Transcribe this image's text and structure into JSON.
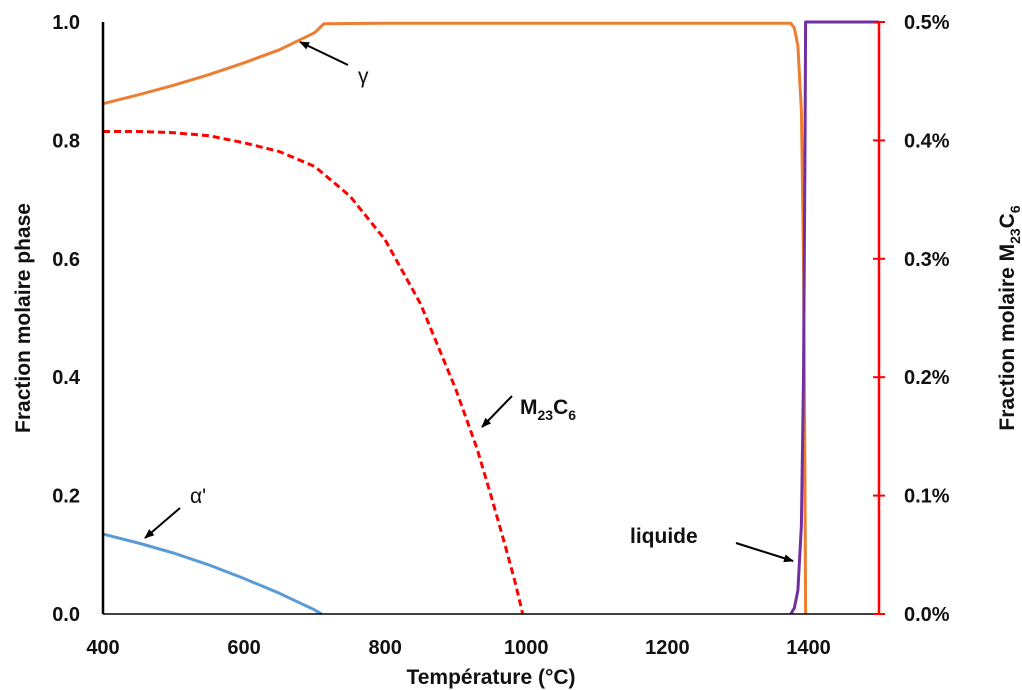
{
  "chart_data": {
    "type": "line",
    "title": "",
    "xlabel": "Température (°C)",
    "ylabel": "Fraction molaire phase",
    "y2label": {
      "base": "Fraction molaire M",
      "sub1": "23",
      "mid": "C",
      "sub2": "6"
    },
    "xlim": [
      400,
      1500
    ],
    "ylim": [
      0,
      1.0
    ],
    "y2lim": [
      0,
      0.5
    ],
    "x_ticks": [
      400,
      600,
      800,
      1000,
      1200,
      1400
    ],
    "x_tick_labels": [
      "400",
      "600",
      "800",
      "1000",
      "1200",
      "1400"
    ],
    "y_ticks": [
      0,
      0.2,
      0.4,
      0.6,
      0.8,
      1.0
    ],
    "y_tick_labels": [
      "0.0",
      "0.2",
      "0.4",
      "0.6",
      "0.8",
      "1.0"
    ],
    "y2_ticks": [
      0,
      0.1,
      0.2,
      0.3,
      0.4,
      0.5
    ],
    "y2_tick_labels": [
      "0.0%",
      "0.1%",
      "0.2%",
      "0.3%",
      "0.4%",
      "0.5%"
    ],
    "grid": false,
    "legend": "none",
    "colors": {
      "gamma": "#ED7D31",
      "m23c6": "#FF0000",
      "alpha": "#5B9BD5",
      "liquide": "#7030A0",
      "axis": "#000000",
      "axis2": "#FF0000"
    },
    "series": [
      {
        "key": "gamma",
        "axis": "left",
        "style": "solid",
        "x": [
          400,
          450,
          500,
          550,
          600,
          650,
          700,
          713,
          800,
          900,
          1000,
          1100,
          1200,
          1300,
          1375,
          1380,
          1385,
          1390,
          1393,
          1395,
          1396
        ],
        "y": [
          0.862,
          0.877,
          0.893,
          0.911,
          0.931,
          0.953,
          0.982,
          0.997,
          0.998,
          0.998,
          0.998,
          0.998,
          0.998,
          0.998,
          0.998,
          0.99,
          0.96,
          0.85,
          0.6,
          0.25,
          0.0
        ]
      },
      {
        "key": "m23c6",
        "axis": "right",
        "style": "dashed",
        "x": [
          400,
          450,
          500,
          550,
          600,
          650,
          700,
          750,
          800,
          850,
          900,
          930,
          950,
          970,
          985,
          995
        ],
        "y": [
          0.4075,
          0.4075,
          0.4065,
          0.404,
          0.398,
          0.3905,
          0.378,
          0.353,
          0.316,
          0.262,
          0.19,
          0.14,
          0.1,
          0.058,
          0.025,
          0.0
        ]
      },
      {
        "key": "alpha",
        "axis": "left",
        "style": "solid",
        "x": [
          400,
          450,
          500,
          550,
          600,
          650,
          700,
          710
        ],
        "y": [
          0.135,
          0.12,
          0.103,
          0.083,
          0.06,
          0.035,
          0.007,
          0.0
        ]
      },
      {
        "key": "liquide",
        "axis": "left",
        "style": "solid",
        "x": [
          1375,
          1380,
          1385,
          1390,
          1393,
          1395,
          1396,
          1396,
          1500
        ],
        "y": [
          0.0,
          0.01,
          0.04,
          0.15,
          0.4,
          0.75,
          1.0,
          1.0,
          1.0
        ]
      }
    ],
    "annotations": [
      {
        "key": "gamma",
        "text": "γ"
      },
      {
        "key": "m23c6",
        "text": {
          "base": "M",
          "sub1": "23",
          "mid": "C",
          "sub2": "6"
        }
      },
      {
        "key": "alpha",
        "text": "α'"
      },
      {
        "key": "liquide",
        "text": "liquide"
      }
    ]
  }
}
